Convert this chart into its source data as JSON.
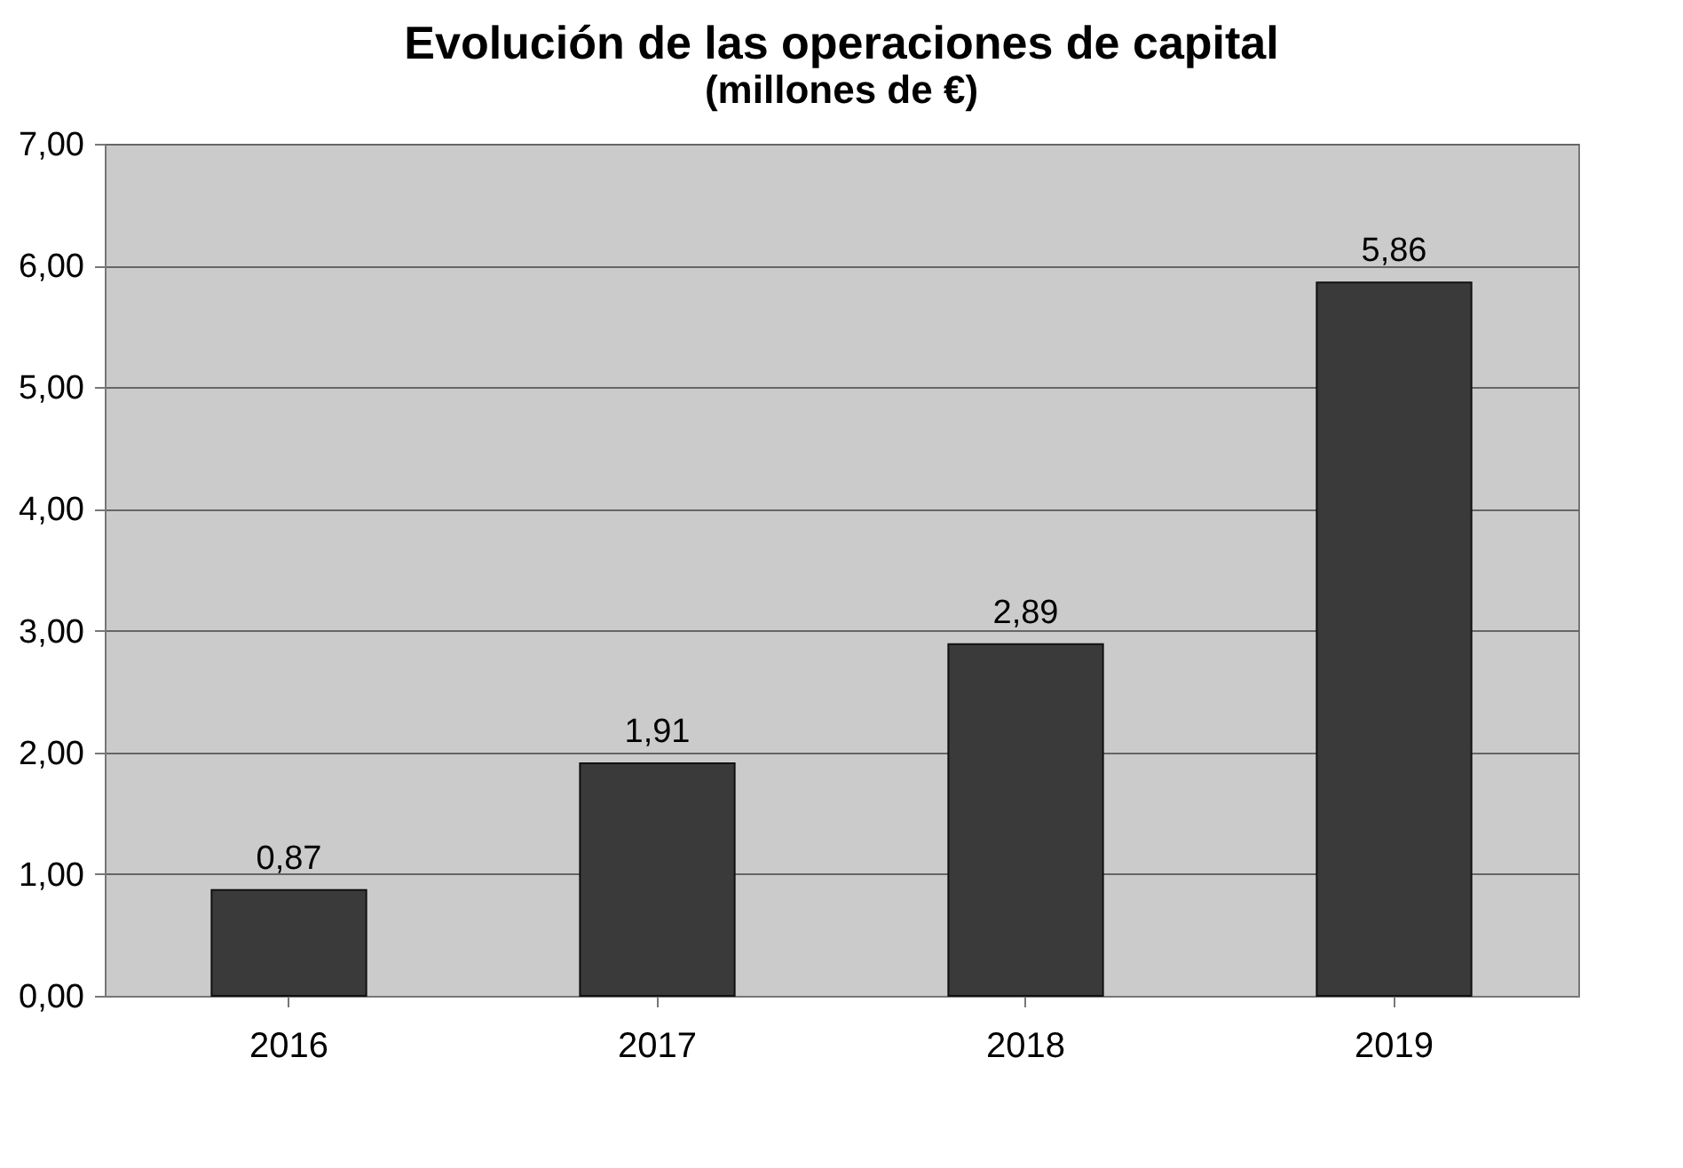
{
  "chart_data": {
    "type": "bar",
    "title": "Evolución de las operaciones de capital",
    "subtitle": "(millones de €)",
    "categories": [
      "2016",
      "2017",
      "2018",
      "2019"
    ],
    "values": [
      0.87,
      1.91,
      2.89,
      5.86
    ],
    "value_labels": [
      "0,87",
      "1,91",
      "2,89",
      "5,86"
    ],
    "color": "#3a3a3a",
    "ylim": [
      0,
      7
    ],
    "yticks": [
      {
        "value": 0,
        "label": "0,00"
      },
      {
        "value": 1,
        "label": "1,00"
      },
      {
        "value": 2,
        "label": "2,00"
      },
      {
        "value": 3,
        "label": "3,00"
      },
      {
        "value": 4,
        "label": "4,00"
      },
      {
        "value": 5,
        "label": "5,00"
      },
      {
        "value": 6,
        "label": "6,00"
      },
      {
        "value": 7,
        "label": "7,00"
      }
    ],
    "grid": "y"
  }
}
